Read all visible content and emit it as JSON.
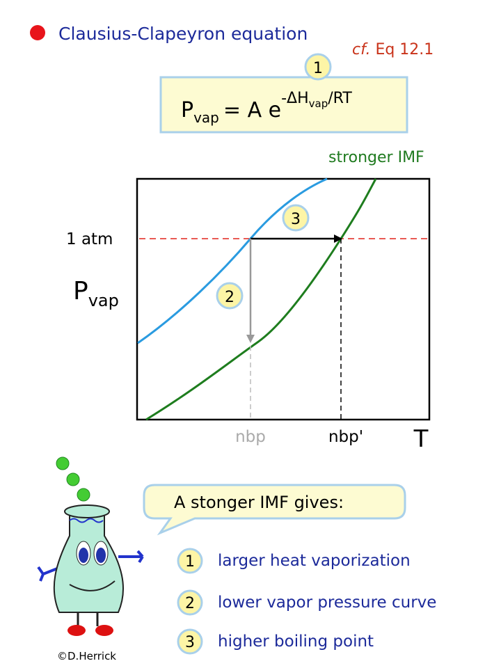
{
  "header": {
    "title": "Clausius-Clapeyron equation",
    "reference_prefix": "cf.",
    "reference": "Eq 12.1"
  },
  "equation": {
    "badge": "1",
    "lhs": "P",
    "lhs_sub": "vap",
    "rhs": "= A e",
    "exponent": "-ΔH",
    "exponent_sub": "vap",
    "exponent_tail": "/RT"
  },
  "graph": {
    "curve_label": "stronger IMF",
    "pressure_label": "1 atm",
    "y_axis": "P",
    "y_axis_sub": "vap",
    "x_axis": "T",
    "step_2": "2",
    "step_3": "3",
    "nbp": "nbp",
    "nbp_prime": "nbp'"
  },
  "callout": {
    "text": "A stonger IMF gives:"
  },
  "list": {
    "items": [
      {
        "number": "1",
        "text": "larger heat vaporization"
      },
      {
        "number": "2",
        "text": "lower vapor pressure curve"
      },
      {
        "number": "3",
        "text": "higher boiling point"
      }
    ]
  },
  "credit": "©D.Herrick"
}
